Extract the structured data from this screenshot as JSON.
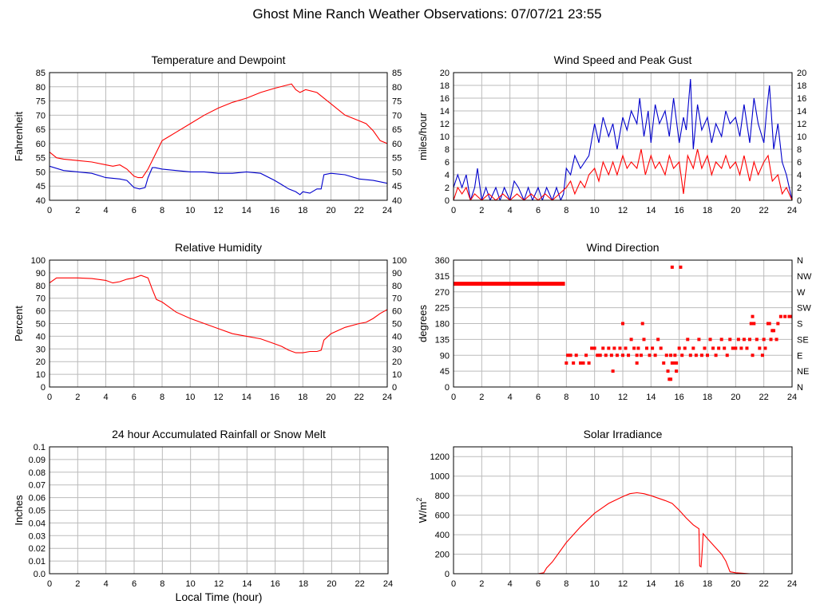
{
  "page": {
    "title": "Ghost Mine Ranch Weather Observations: 07/07/21 23:55",
    "xaxis_label": "Local Time (hour)"
  },
  "colors": {
    "primary": "#ff0000",
    "secondary": "#0000cc",
    "grid": "#bbbbbb",
    "frame": "#000000"
  },
  "chart_data": [
    {
      "id": "temp",
      "type": "line",
      "title": "Temperature and Dewpoint",
      "ylabel": "Fahrenheit",
      "xlim": [
        0,
        24
      ],
      "ylim": [
        40,
        85
      ],
      "x_ticks": [
        0,
        2,
        4,
        6,
        8,
        10,
        12,
        14,
        16,
        18,
        20,
        22,
        24
      ],
      "y_ticks": [
        40,
        45,
        50,
        55,
        60,
        65,
        70,
        75,
        80,
        85
      ],
      "y_right_ticks": [
        40,
        45,
        50,
        55,
        60,
        65,
        70,
        75,
        80,
        85
      ],
      "grid": true,
      "series": [
        {
          "color": "#ff0000",
          "x": [
            0,
            0.5,
            1,
            2,
            3,
            4,
            4.5,
            5,
            5.5,
            6,
            6.3,
            6.6,
            7,
            7.5,
            8,
            8.5,
            9,
            10,
            11,
            12,
            13,
            14,
            15,
            16,
            16.8,
            17.2,
            17.5,
            17.8,
            18.2,
            19,
            20,
            21,
            22,
            22.5,
            23,
            23.5,
            24
          ],
          "y": [
            57,
            55,
            54.5,
            54,
            53.5,
            52.5,
            52,
            52.5,
            51,
            48.5,
            48,
            48,
            51,
            56,
            61,
            62.5,
            64,
            67,
            70,
            72.5,
            74.5,
            76,
            78,
            79.5,
            80.5,
            81,
            79,
            78,
            79,
            78,
            74,
            70,
            68,
            67,
            64.5,
            61,
            60
          ]
        },
        {
          "color": "#0000cc",
          "x": [
            0,
            1,
            2,
            3,
            4,
            5,
            5.5,
            6,
            6.4,
            6.8,
            7,
            7.3,
            7.5,
            8,
            9,
            10,
            11,
            12,
            13,
            14,
            15,
            16,
            16.5,
            17,
            17.5,
            17.8,
            18,
            18.5,
            19,
            19.3,
            19.5,
            20,
            21,
            22,
            23,
            24
          ],
          "y": [
            52,
            50.5,
            50,
            49.5,
            48,
            47.5,
            47,
            44.5,
            44,
            44.5,
            48,
            51.5,
            51.5,
            51,
            50.5,
            50,
            50,
            49.5,
            49.5,
            50,
            49.5,
            47,
            45.5,
            44,
            43,
            42,
            43,
            42.5,
            44,
            44,
            49,
            49.5,
            49,
            47.5,
            47,
            46
          ]
        }
      ]
    },
    {
      "id": "wind",
      "type": "line",
      "title": "Wind Speed and Peak Gust",
      "ylabel": "miles/hour",
      "xlim": [
        0,
        24
      ],
      "ylim": [
        0,
        20
      ],
      "x_ticks": [
        0,
        2,
        4,
        6,
        8,
        10,
        12,
        14,
        16,
        18,
        20,
        22,
        24
      ],
      "y_ticks": [
        0,
        2,
        4,
        6,
        8,
        10,
        12,
        14,
        16,
        18,
        20
      ],
      "y_right_ticks": [
        0,
        2,
        4,
        6,
        8,
        10,
        12,
        14,
        16,
        18,
        20
      ],
      "grid": true,
      "series": [
        {
          "color": "#0000cc",
          "x": [
            0,
            0.3,
            0.6,
            0.9,
            1.2,
            1.5,
            1.7,
            2,
            2.3,
            2.6,
            3,
            3.3,
            3.6,
            4,
            4.3,
            4.6,
            5,
            5.3,
            5.6,
            6,
            6.3,
            6.6,
            7,
            7.3,
            7.6,
            7.8,
            8,
            8.3,
            8.6,
            9,
            9.3,
            9.6,
            10,
            10.3,
            10.6,
            11,
            11.3,
            11.6,
            12,
            12.3,
            12.6,
            13,
            13.2,
            13.5,
            13.8,
            14,
            14.3,
            14.6,
            15,
            15.3,
            15.6,
            16,
            16.3,
            16.5,
            16.8,
            17,
            17.3,
            17.6,
            18,
            18.3,
            18.6,
            19,
            19.3,
            19.6,
            20,
            20.3,
            20.6,
            21,
            21.3,
            21.6,
            22,
            22.2,
            22.4,
            22.7,
            23,
            23.3,
            23.6,
            24
          ],
          "y": [
            2,
            4,
            2,
            4,
            0,
            2,
            5,
            0,
            2,
            0,
            2,
            0,
            2,
            0,
            3,
            2,
            0,
            2,
            0,
            2,
            0,
            2,
            0,
            2,
            0,
            1,
            5,
            4,
            7,
            5,
            6,
            7,
            12,
            9,
            13,
            10,
            12,
            8,
            13,
            11,
            14,
            12,
            16,
            10,
            14,
            9,
            15,
            12,
            14,
            10,
            16,
            9,
            13,
            11,
            19,
            8,
            15,
            11,
            13,
            9,
            12,
            10,
            14,
            12,
            13,
            10,
            15,
            9,
            16,
            12,
            9,
            14,
            18,
            8,
            12,
            6,
            4,
            0
          ]
        },
        {
          "color": "#ff0000",
          "x": [
            0,
            0.3,
            0.6,
            0.9,
            1.2,
            1.5,
            2,
            2.5,
            3,
            3.5,
            4,
            4.5,
            5,
            5.5,
            6,
            6.5,
            7,
            7.5,
            8,
            8.3,
            8.6,
            9,
            9.3,
            9.6,
            10,
            10.3,
            10.6,
            11,
            11.3,
            11.6,
            12,
            12.3,
            12.6,
            13,
            13.3,
            13.6,
            14,
            14.3,
            14.6,
            15,
            15.3,
            15.6,
            16,
            16.3,
            16.6,
            17,
            17.3,
            17.6,
            18,
            18.3,
            18.6,
            19,
            19.3,
            19.6,
            20,
            20.3,
            20.6,
            21,
            21.3,
            21.6,
            22,
            22.3,
            22.6,
            23,
            23.3,
            23.6,
            24
          ],
          "y": [
            0,
            2,
            1,
            2,
            0,
            1,
            0,
            1,
            0,
            1,
            0,
            1,
            0,
            1,
            0,
            1,
            0,
            1,
            2,
            3,
            1,
            3,
            2,
            4,
            5,
            3,
            6,
            4,
            6,
            4,
            7,
            5,
            6,
            5,
            8,
            4,
            7,
            5,
            6,
            4,
            7,
            5,
            6,
            1,
            7,
            5,
            8,
            5,
            7,
            4,
            6,
            5,
            7,
            5,
            6,
            4,
            7,
            3,
            6,
            4,
            6,
            7,
            3,
            4,
            1,
            2,
            0
          ]
        }
      ]
    },
    {
      "id": "rh",
      "type": "line",
      "title": "Relative Humidity",
      "ylabel": "Percent",
      "xlim": [
        0,
        24
      ],
      "ylim": [
        0,
        100
      ],
      "x_ticks": [
        0,
        2,
        4,
        6,
        8,
        10,
        12,
        14,
        16,
        18,
        20,
        22,
        24
      ],
      "y_ticks": [
        0,
        10,
        20,
        30,
        40,
        50,
        60,
        70,
        80,
        90,
        100
      ],
      "y_right_ticks": [
        0,
        10,
        20,
        30,
        40,
        50,
        60,
        70,
        80,
        90,
        100
      ],
      "grid": true,
      "series": [
        {
          "color": "#ff0000",
          "x": [
            0,
            0.5,
            1,
            2,
            3,
            4,
            4.5,
            5,
            5.5,
            6,
            6.5,
            7,
            7.3,
            7.6,
            8,
            8.5,
            9,
            10,
            11,
            12,
            13,
            14,
            15,
            16,
            16.5,
            17,
            17.5,
            18,
            18.5,
            19,
            19.3,
            19.5,
            20,
            21,
            22,
            22.5,
            23,
            23.5,
            24
          ],
          "y": [
            82,
            86,
            86,
            86,
            85.5,
            84,
            82,
            83,
            85,
            86,
            88,
            86,
            77,
            69,
            67,
            63,
            59,
            54,
            50,
            46,
            42,
            40,
            38,
            34,
            32,
            29,
            27,
            27,
            28,
            28,
            29,
            37,
            42,
            47,
            50,
            51,
            54,
            58,
            61
          ]
        }
      ]
    },
    {
      "id": "dir",
      "type": "scatter",
      "title": "Wind Direction",
      "ylabel": "degrees",
      "xlim": [
        0,
        24
      ],
      "ylim": [
        0,
        360
      ],
      "x_ticks": [
        0,
        2,
        4,
        6,
        8,
        10,
        12,
        14,
        16,
        18,
        20,
        22,
        24
      ],
      "y_ticks": [
        0,
        45,
        90,
        135,
        180,
        225,
        270,
        315,
        360
      ],
      "y_right_ticks": [
        "N",
        "NE",
        "E",
        "SE",
        "S",
        "SW",
        "W",
        "NW",
        "N"
      ],
      "grid": true,
      "series": [
        {
          "color": "#ff0000",
          "x": [
            8,
            8.1,
            8.3,
            8.5,
            8.7,
            9,
            9.2,
            9.4,
            9.6,
            9.8,
            10,
            10.2,
            10.4,
            10.6,
            10.8,
            11,
            11.2,
            11.4,
            11.6,
            11.8,
            12,
            12.2,
            12.4,
            12.6,
            12.8,
            13,
            13.1,
            13.3,
            13.5,
            13.7,
            13.9,
            14.1,
            14.3,
            14.5,
            14.7,
            14.9,
            15.1,
            15.2,
            15.3,
            15.4,
            15.5,
            15.6,
            15.7,
            15.8,
            16,
            16.2,
            16.4,
            16.6,
            16.8,
            17,
            17.2,
            17.4,
            17.6,
            17.8,
            18,
            18.2,
            18.4,
            18.6,
            18.8,
            19,
            19.2,
            19.4,
            19.6,
            19.8,
            20,
            20.2,
            20.4,
            20.6,
            20.8,
            21,
            21.1,
            21.2,
            21.3,
            21.5,
            21.7,
            21.9,
            22,
            22.1,
            22.3,
            22.5,
            22.7,
            22.9,
            23,
            23.2,
            23.5,
            23.8,
            24,
            15.5,
            16.1,
            15.4,
            15.8,
            13.4,
            11.3,
            13.0,
            12.0,
            21.2,
            22.4,
            22.6
          ],
          "y": [
            68,
            90,
            90,
            68,
            90,
            68,
            68,
            90,
            68,
            110,
            110,
            90,
            90,
            110,
            90,
            110,
            90,
            110,
            90,
            110,
            90,
            110,
            90,
            135,
            110,
            90,
            110,
            90,
            135,
            110,
            90,
            110,
            90,
            135,
            110,
            68,
            90,
            45,
            22,
            90,
            68,
            68,
            90,
            68,
            110,
            90,
            110,
            135,
            90,
            110,
            90,
            135,
            90,
            110,
            90,
            135,
            110,
            90,
            110,
            135,
            110,
            90,
            135,
            110,
            110,
            135,
            110,
            135,
            110,
            135,
            180,
            200,
            180,
            135,
            110,
            90,
            135,
            110,
            180,
            135,
            160,
            135,
            180,
            200,
            200,
            200,
            200,
            340,
            340,
            22,
            45,
            180,
            45,
            68,
            180,
            90,
            180,
            160
          ]
        }
      ],
      "series_before_8": {
        "color": "#ff0000",
        "x": [
          0,
          7.9
        ],
        "y": [
          293,
          293
        ]
      }
    },
    {
      "id": "rain",
      "type": "line",
      "title": "24 hour Accumulated Rainfall or Snow Melt",
      "ylabel": "Inches",
      "xlim": [
        0,
        24
      ],
      "ylim": [
        0,
        0.1
      ],
      "x_ticks": [
        0,
        2,
        4,
        6,
        8,
        10,
        12,
        14,
        16,
        18,
        20,
        22,
        24
      ],
      "y_ticks": [
        0.0,
        0.01,
        0.02,
        0.03,
        0.04,
        0.05,
        0.06,
        0.07,
        0.08,
        0.09,
        0.1
      ],
      "y_tick_labels": [
        "0.0",
        "0.01",
        "0.02",
        "0.03",
        "0.04",
        "0.05",
        "0.06",
        "0.07",
        "0.08",
        "0.09",
        "0.1"
      ],
      "grid": true,
      "series": [
        {
          "color": "#ff0000",
          "x": [
            0,
            24
          ],
          "y": [
            0,
            0
          ]
        }
      ]
    },
    {
      "id": "solar",
      "type": "line",
      "title": "Solar Irradiance",
      "ylabel": "W/m",
      "ylabel_sup": "2",
      "xlim": [
        0,
        24
      ],
      "ylim": [
        0,
        1300
      ],
      "x_ticks": [
        0,
        2,
        4,
        6,
        8,
        10,
        12,
        14,
        16,
        18,
        20,
        22,
        24
      ],
      "y_ticks": [
        0,
        200,
        400,
        600,
        800,
        1000,
        1200
      ],
      "grid": true,
      "series": [
        {
          "color": "#ff0000",
          "x": [
            0,
            6,
            6.4,
            6.6,
            7,
            8,
            9,
            10,
            11,
            12,
            12.5,
            13,
            13.5,
            14,
            15,
            15.5,
            16,
            16.5,
            17,
            17.4,
            17.45,
            17.55,
            17.6,
            17.7,
            18,
            18.5,
            19,
            19.3,
            19.6,
            20,
            20.5,
            21,
            24
          ],
          "y": [
            0,
            0,
            10,
            60,
            120,
            320,
            480,
            620,
            720,
            790,
            820,
            830,
            820,
            800,
            750,
            720,
            650,
            570,
            500,
            460,
            80,
            70,
            160,
            410,
            360,
            280,
            200,
            130,
            20,
            10,
            5,
            0,
            0
          ]
        }
      ]
    }
  ]
}
